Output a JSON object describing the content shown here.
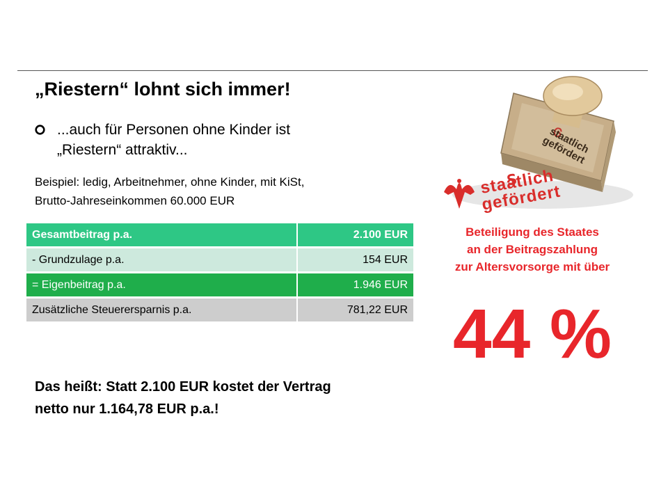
{
  "title": "„Riestern“ lohnt sich immer!",
  "bullet": {
    "line1": "...auch für Personen ohne Kinder ist",
    "line2": "„Riestern“ attraktiv..."
  },
  "example": {
    "line1": "Beispiel: ledig, Arbeitnehmer, ohne Kinder, mit KiSt,",
    "line2": "Brutto-Jahreseinkommen 60.000 EUR"
  },
  "table": {
    "rows": [
      {
        "label": "Gesamtbeitrag p.a.",
        "value": "2.100 EUR"
      },
      {
        "label": "- Grundzulage p.a.",
        "value": "154 EUR"
      },
      {
        "label": "= Eigenbeitrag p.a.",
        "value": "1.946 EUR"
      },
      {
        "label": "Zusätzliche Steuerersparnis p.a.",
        "value": "781,22 EUR"
      }
    ]
  },
  "conclusion": {
    "line1": "Das heißt: Statt 2.100 EUR kostet der Vertrag",
    "line2": "netto nur 1.164,78 EUR p.a.!"
  },
  "stamp": {
    "imprint_line1": "staatlich",
    "imprint_line2": "gefördert"
  },
  "beteiligung": {
    "line1": "Beteiligung des Staates",
    "line2": "an der Beitragszahlung",
    "line3": "zur Altersvorsorge mit über"
  },
  "percent": "44 %",
  "colors": {
    "header_green": "#2ec785",
    "light_green": "#cde9dd",
    "dark_green": "#1fae4b",
    "gray": "#cdcdcd",
    "red": "#e8262b"
  }
}
